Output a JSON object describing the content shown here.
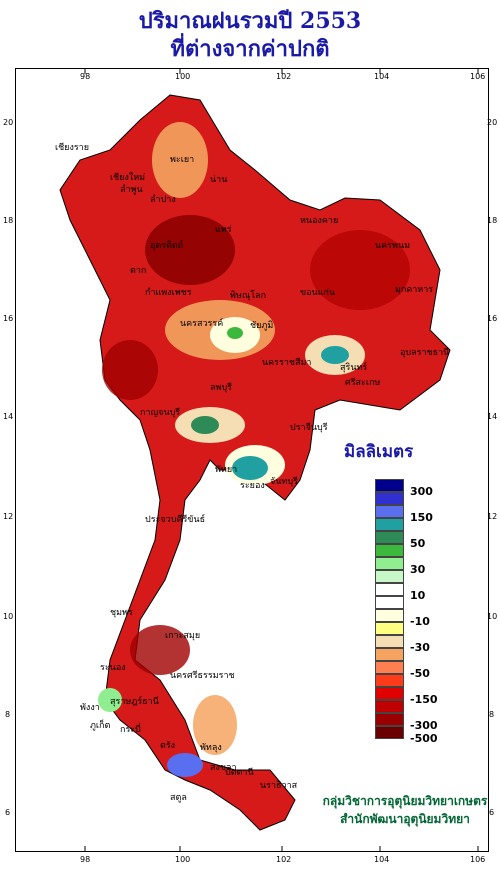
{
  "title": {
    "line1": "ปริมาณฝนรวมปี  2553",
    "line2": "ที่ต่างจากค่าปกติ"
  },
  "axes": {
    "lon_ticks": [
      "98",
      "100",
      "102",
      "104",
      "106"
    ],
    "lat_ticks": [
      "20",
      "18",
      "16",
      "14",
      "12",
      "10",
      "8",
      "6"
    ]
  },
  "legend": {
    "title": "มิลลิเมตร",
    "items": [
      {
        "color": "#00008b",
        "label": "300"
      },
      {
        "color": "#3030d0",
        "label": ""
      },
      {
        "color": "#5a6ef0",
        "label": "150"
      },
      {
        "color": "#20a0a0",
        "label": ""
      },
      {
        "color": "#2e8b57",
        "label": "50"
      },
      {
        "color": "#3cb83c",
        "label": ""
      },
      {
        "color": "#90ee90",
        "label": "30"
      },
      {
        "color": "#c8f8c8",
        "label": ""
      },
      {
        "color": "#ffffff",
        "label": "10"
      },
      {
        "color": "#ffffff",
        "label": ""
      },
      {
        "color": "#ffffe0",
        "label": "-10"
      },
      {
        "color": "#ffff80",
        "label": ""
      },
      {
        "color": "#f5deb3",
        "label": "-30"
      },
      {
        "color": "#f4a460",
        "label": ""
      },
      {
        "color": "#ff7f50",
        "label": "-50"
      },
      {
        "color": "#ff3b1a",
        "label": ""
      },
      {
        "color": "#e00000",
        "label": "-150"
      },
      {
        "color": "#c00000",
        "label": ""
      },
      {
        "color": "#9b0000",
        "label": "-300"
      },
      {
        "color": "#6b0000",
        "label": "-500"
      }
    ]
  },
  "credit": {
    "line1": "กลุ่มวิชาการอุตุนิยมวิทยาเกษตร",
    "line2": "สำนักพัฒนาอุตุนิยมวิทยา"
  },
  "places": [
    "เชียงราย",
    "พะเยา",
    "น่าน",
    "เชียงใหม่",
    "ลำพูน",
    "ลำปาง",
    "แพร่",
    "อุตรดิตถ์",
    "ตาก",
    "หนองคาย",
    "นครพนม",
    "มุกดาหาร",
    "ขอนแก่น",
    "กำแพงเพชร",
    "พิษณุโลก",
    "นครสวรรค์",
    "ชัยภูมิ",
    "นครราชสีมา",
    "สุรินทร์",
    "อุบลราชธานี",
    "ศรีสะเกษ",
    "ลพบุรี",
    "กาญจนบุรี",
    "ปราจีนบุรี",
    "พัทยา",
    "ระยอง",
    "จันทบุรี",
    "ประจวบคีรีขันธ์",
    "ชุมพร",
    "ระนอง",
    "เกาะสมุย",
    "สุราษฎร์ธานี",
    "นครศรีธรรมราช",
    "พังงา",
    "ภูเก็ต",
    "กระบี่",
    "ตรัง",
    "พัทลุง",
    "สงขลา",
    "สตูล",
    "ปัตตานี",
    "นราธิวาส"
  ]
}
